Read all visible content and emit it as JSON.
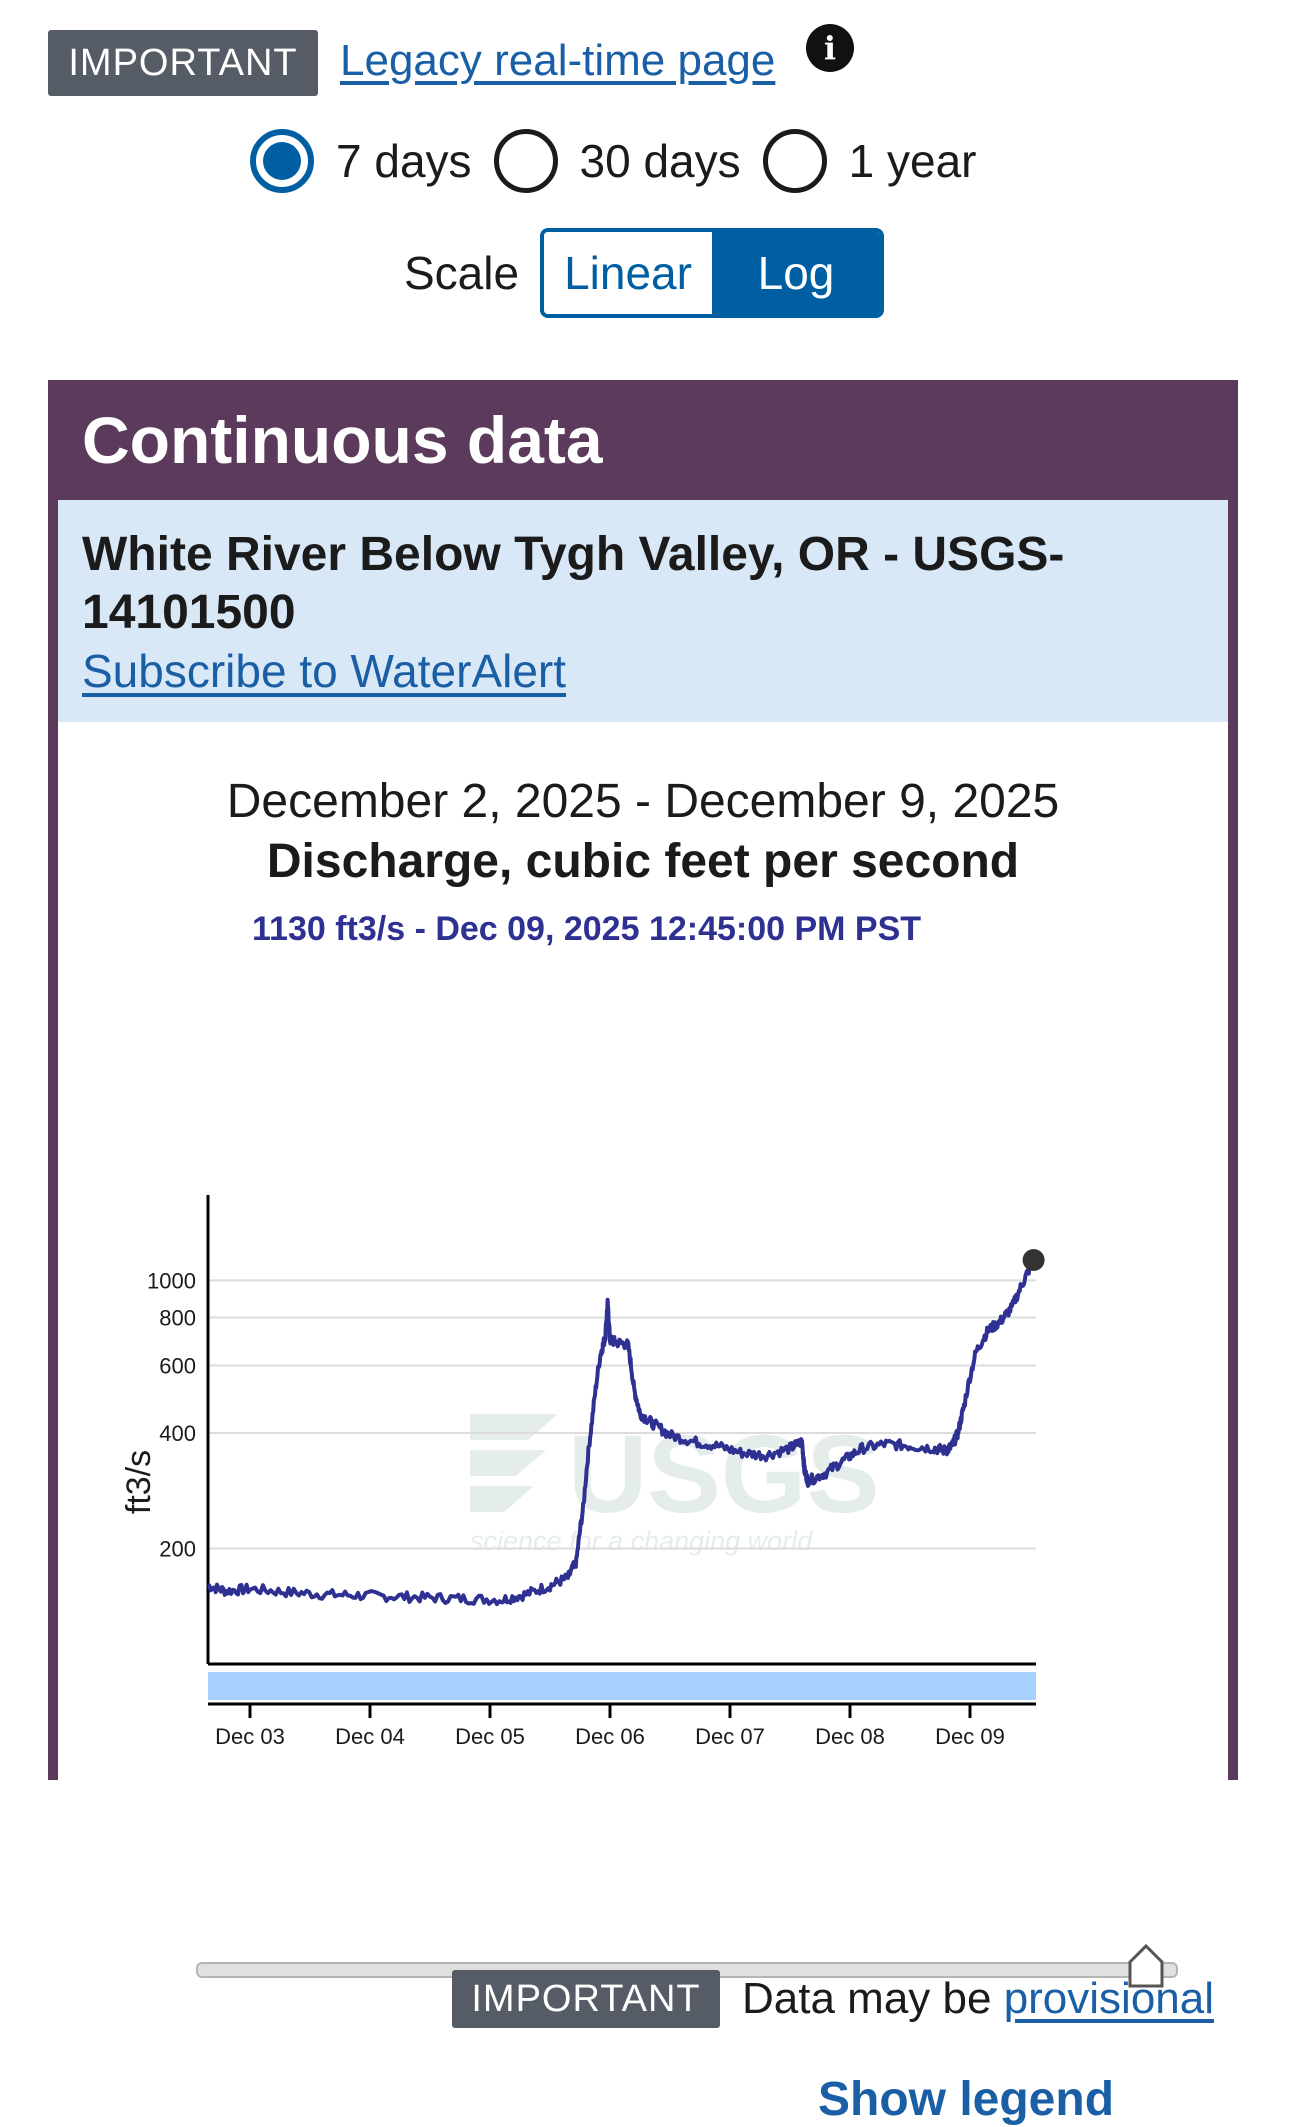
{
  "top": {
    "important_badge": "IMPORTANT",
    "legacy_link": "Legacy real-time page ",
    "info_icon": "i"
  },
  "period": {
    "options": [
      {
        "label": "7 days",
        "checked": true
      },
      {
        "label": "30 days",
        "checked": false
      },
      {
        "label": "1 year",
        "checked": false
      }
    ]
  },
  "scale": {
    "label": "Scale",
    "linear": "Linear",
    "log": "Log",
    "selected": "Log"
  },
  "panel": {
    "title": "Continuous data",
    "site_name": "White River Below Tygh Valley, OR - USGS-14101500",
    "subscribe_link": "Subscribe to WaterAlert",
    "date_range": "December 2, 2025 - December 9, 2025",
    "parameter": "Discharge, cubic feet per second",
    "current_value": "1130 ft3/s - Dec 09, 2025 12:45:00 PM PST",
    "watermark_logo": "USGS",
    "watermark_tagline": "science for a changing world",
    "important_badge": "IMPORTANT",
    "provisional_prefix": "Data may be ",
    "provisional_link": "provisional",
    "show_legend": "Show legend"
  },
  "colors": {
    "series": "#2e3192",
    "panel": "#5c3a5c",
    "site_box": "#d9e8f6",
    "link": "#1a5fa6",
    "approval_bar": "#a8d1ff"
  },
  "chart_data": {
    "type": "line",
    "ylabel": "ft3/s",
    "yscale": "log",
    "ylim": [
      100,
      1200
    ],
    "yticks": [
      200,
      400,
      600,
      800,
      1000
    ],
    "ytick_labels": [
      "200",
      "400",
      "600",
      "800",
      "1000"
    ],
    "xlim": [
      2.65,
      9.55
    ],
    "xticks": [
      3,
      4,
      5,
      6,
      7,
      8,
      9
    ],
    "xtick_labels": [
      "Dec 03",
      "Dec 04",
      "Dec 05",
      "Dec 06",
      "Dec 07",
      "Dec 08",
      "Dec 09"
    ],
    "grid": true,
    "series": [
      {
        "x": [
          2.65,
          2.8,
          3.0,
          3.3,
          3.6,
          3.9,
          4.2,
          4.5,
          4.8,
          5.1,
          5.3,
          5.5,
          5.65,
          5.72,
          5.78,
          5.85,
          5.92,
          5.96,
          5.98,
          6.0,
          6.05,
          6.15,
          6.2,
          6.25,
          6.35,
          6.5,
          6.7,
          6.9,
          7.1,
          7.3,
          7.5,
          7.6,
          7.62,
          7.65,
          7.8,
          7.95,
          8.1,
          8.3,
          8.5,
          8.7,
          8.8,
          8.85,
          8.9,
          8.95,
          9.05,
          9.15,
          9.25,
          9.35,
          9.45,
          9.53
        ],
        "y": [
          160,
          155,
          157,
          154,
          152,
          151,
          150,
          149,
          148,
          147,
          152,
          160,
          168,
          185,
          260,
          430,
          640,
          710,
          870,
          700,
          690,
          680,
          520,
          450,
          425,
          395,
          380,
          370,
          355,
          350,
          365,
          380,
          320,
          300,
          315,
          340,
          365,
          375,
          370,
          365,
          360,
          370,
          400,
          470,
          650,
          740,
          780,
          850,
          1000,
          1130
        ]
      }
    ]
  }
}
